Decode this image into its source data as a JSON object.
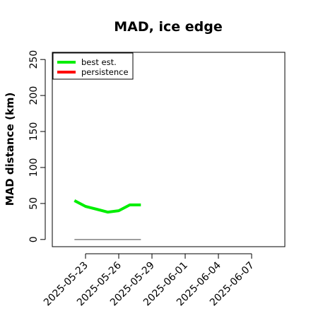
{
  "chart_data": {
    "type": "line",
    "title": "MAD, ice edge",
    "ylabel": "MAD distance (km)",
    "xlabel": "",
    "ylim": [
      0,
      260
    ],
    "xlim": [
      "2025-05-20",
      "2025-06-10"
    ],
    "yticks": [
      0,
      50,
      100,
      150,
      200,
      250
    ],
    "xticks": [
      "2025-05-23",
      "2025-05-26",
      "2025-05-29",
      "2025-06-01",
      "2025-06-04",
      "2025-06-07"
    ],
    "grid": false,
    "legend_position": "top-left",
    "series": [
      {
        "name": "best est.",
        "color": "#00ee00",
        "x": [
          "2025-05-22",
          "2025-05-23",
          "2025-05-24",
          "2025-05-25",
          "2025-05-26",
          "2025-05-27",
          "2025-05-28"
        ],
        "y": [
          54,
          46,
          42,
          38,
          40,
          48,
          48
        ]
      },
      {
        "name": "persistence",
        "color": "#ff0000",
        "x": [],
        "y": []
      }
    ],
    "reference_line": {
      "color": "#808080",
      "x": [
        "2025-05-22",
        "2025-05-28"
      ],
      "y": [
        0,
        0
      ]
    }
  }
}
